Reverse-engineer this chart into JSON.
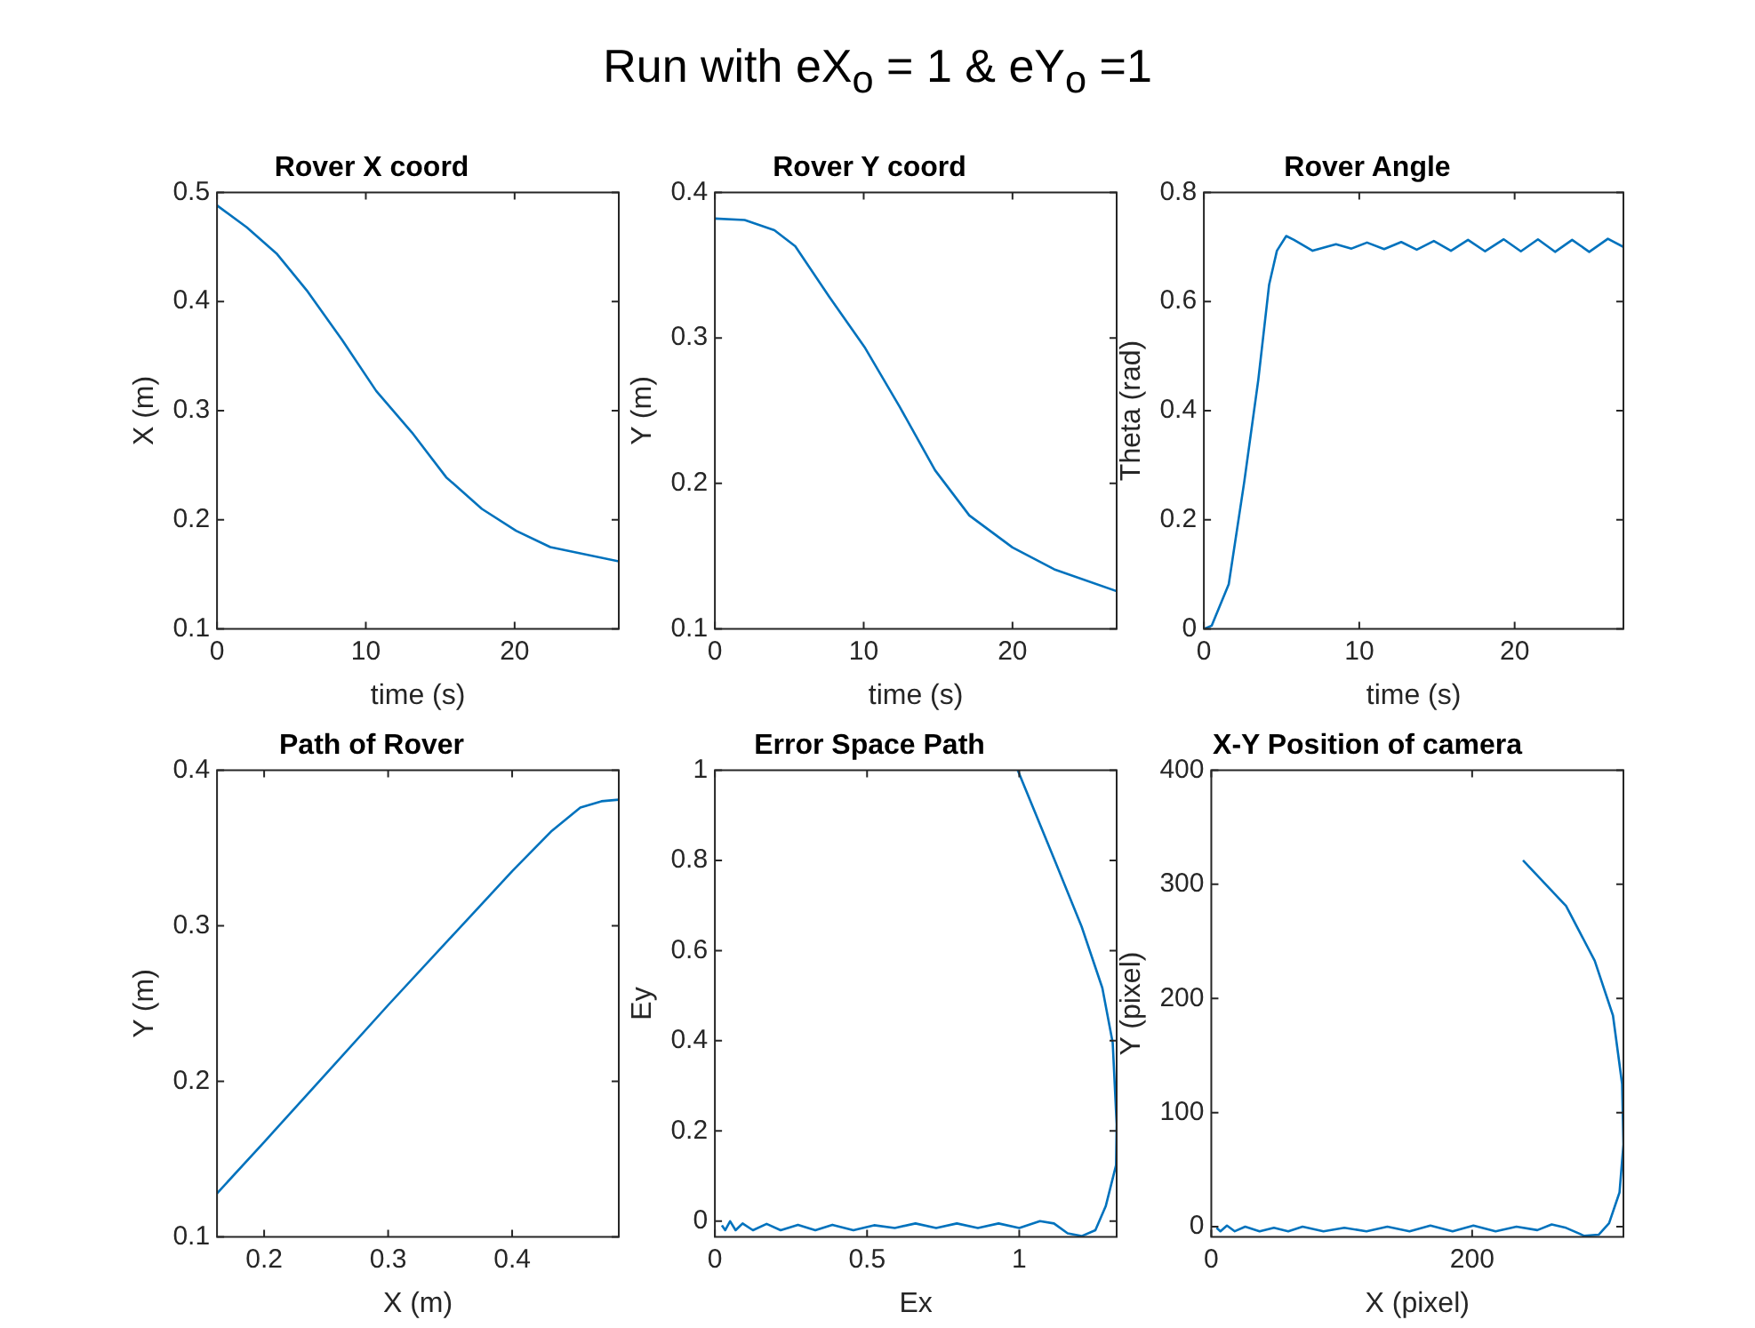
{
  "chart_data": [
    {
      "type": "other",
      "title": "Run with eX$_{o}$ = 1 & eY$_{o}$ =1"
    },
    {
      "type": "line",
      "title": "Rover X coord",
      "xlabel": "time (s)",
      "ylabel": "X (m)",
      "color": "#0072bd",
      "xlim": [
        0,
        27
      ],
      "xticks": [
        0,
        10,
        20
      ],
      "ylim": [
        0.1,
        0.5
      ],
      "yticks": [
        0.1,
        0.2,
        0.3,
        0.4,
        0.5
      ],
      "x": [
        0,
        2,
        4,
        6.1,
        8.4,
        10.7,
        13.1,
        15.4,
        17.8,
        20.1,
        22.4,
        27
      ],
      "values": [
        0.488,
        0.468,
        0.444,
        0.409,
        0.365,
        0.318,
        0.28,
        0.239,
        0.21,
        0.19,
        0.175,
        0.162
      ]
    },
    {
      "type": "line",
      "title": "Rover Y coord",
      "xlabel": "time (s)",
      "ylabel": "Y (m)",
      "color": "#0072bd",
      "xlim": [
        0,
        27
      ],
      "xticks": [
        0,
        10,
        20
      ],
      "ylim": [
        0.1,
        0.4
      ],
      "yticks": [
        0.1,
        0.2,
        0.3,
        0.4
      ],
      "x": [
        0,
        2,
        4,
        5.4,
        7.7,
        10.1,
        12.4,
        14.8,
        17.1,
        20,
        22.8,
        27
      ],
      "values": [
        0.382,
        0.381,
        0.374,
        0.363,
        0.328,
        0.293,
        0.253,
        0.209,
        0.178,
        0.156,
        0.141,
        0.126
      ]
    },
    {
      "type": "line",
      "title": "Rover Angle",
      "xlabel": "time (s)",
      "ylabel": "Theta (rad)",
      "color": "#0072bd",
      "xlim": [
        0,
        27
      ],
      "xticks": [
        0,
        10,
        20
      ],
      "ylim": [
        0,
        0.8
      ],
      "yticks": [
        0,
        0.2,
        0.4,
        0.6,
        0.8
      ],
      "x": [
        0,
        0.5,
        1.6,
        2.6,
        3.5,
        4.2,
        4.7,
        5.3,
        5.8,
        7,
        8.5,
        9.5,
        10.5,
        11.6,
        12.7,
        13.7,
        14.8,
        15.9,
        17,
        18.1,
        19.3,
        20.4,
        21.5,
        22.6,
        23.7,
        24.8,
        26,
        27
      ],
      "values": [
        0,
        0.006,
        0.082,
        0.27,
        0.456,
        0.631,
        0.693,
        0.72,
        0.713,
        0.693,
        0.705,
        0.697,
        0.708,
        0.696,
        0.709,
        0.695,
        0.711,
        0.693,
        0.713,
        0.692,
        0.714,
        0.692,
        0.714,
        0.691,
        0.713,
        0.691,
        0.715,
        0.7
      ]
    },
    {
      "type": "line",
      "title": "Path of Rover",
      "xlabel": "X (m)",
      "ylabel": "Y (m)",
      "color": "#0072bd",
      "xlim": [
        0.162,
        0.486
      ],
      "xticks": [
        0.2,
        0.3,
        0.4
      ],
      "ylim": [
        0.1,
        0.4
      ],
      "yticks": [
        0.1,
        0.2,
        0.3,
        0.4
      ],
      "x": [
        0.162,
        0.2,
        0.25,
        0.3,
        0.35,
        0.4,
        0.432,
        0.455,
        0.472,
        0.486
      ],
      "values": [
        0.128,
        0.161,
        0.205,
        0.249,
        0.292,
        0.335,
        0.361,
        0.376,
        0.38,
        0.381
      ]
    },
    {
      "type": "line",
      "title": "Error Space Path",
      "xlabel": "Ex",
      "ylabel": "Ey",
      "color": "#0072bd",
      "xlim": [
        0,
        1.32
      ],
      "xticks": [
        0,
        0.5,
        1
      ],
      "ylim": [
        -0.035,
        1
      ],
      "yticks": [
        0,
        0.2,
        0.4,
        0.6,
        0.8,
        1
      ],
      "x": [
        0.995,
        1.114,
        1.205,
        1.273,
        1.307,
        1.32,
        1.318,
        1.284,
        1.25,
        1.205,
        1.159,
        1.114,
        1.068,
        1.0,
        0.932,
        0.864,
        0.795,
        0.727,
        0.659,
        0.591,
        0.523,
        0.455,
        0.386,
        0.33,
        0.273,
        0.216,
        0.17,
        0.125,
        0.091,
        0.068,
        0.05,
        0.034,
        0.023
      ],
      "values": [
        1.0,
        0.804,
        0.653,
        0.517,
        0.396,
        0.215,
        0.124,
        0.033,
        -0.02,
        -0.033,
        -0.027,
        -0.005,
        0.0,
        -0.015,
        -0.005,
        -0.015,
        -0.005,
        -0.015,
        -0.005,
        -0.015,
        -0.009,
        -0.02,
        -0.008,
        -0.02,
        -0.008,
        -0.02,
        -0.006,
        -0.02,
        -0.005,
        -0.02,
        0.0,
        -0.02,
        -0.009
      ]
    },
    {
      "type": "line",
      "title": "X-Y Position of camera",
      "xlabel": "X (pixel)",
      "ylabel": "Y (pixel)",
      "color": "#0072bd",
      "xlim": [
        0,
        316
      ],
      "xticks": [
        0,
        200
      ],
      "ylim": [
        -9,
        400
      ],
      "yticks": [
        0,
        100,
        200,
        300,
        400
      ],
      "x": [
        239,
        272,
        294,
        308,
        315,
        316,
        313,
        305,
        297,
        286,
        272,
        261,
        250,
        234,
        218,
        201,
        185,
        168,
        152,
        135,
        119,
        102,
        86,
        70,
        59,
        48,
        37,
        26,
        18,
        12,
        7,
        4
      ],
      "values": [
        321,
        281,
        233,
        185,
        125,
        72,
        30,
        3,
        -7,
        -8,
        -1,
        2,
        -3,
        0,
        -4,
        1,
        -4,
        1,
        -4,
        0,
        -4,
        -1,
        -4,
        0,
        -4,
        -1,
        -4,
        0,
        -4,
        1,
        -4,
        -1
      ]
    }
  ]
}
